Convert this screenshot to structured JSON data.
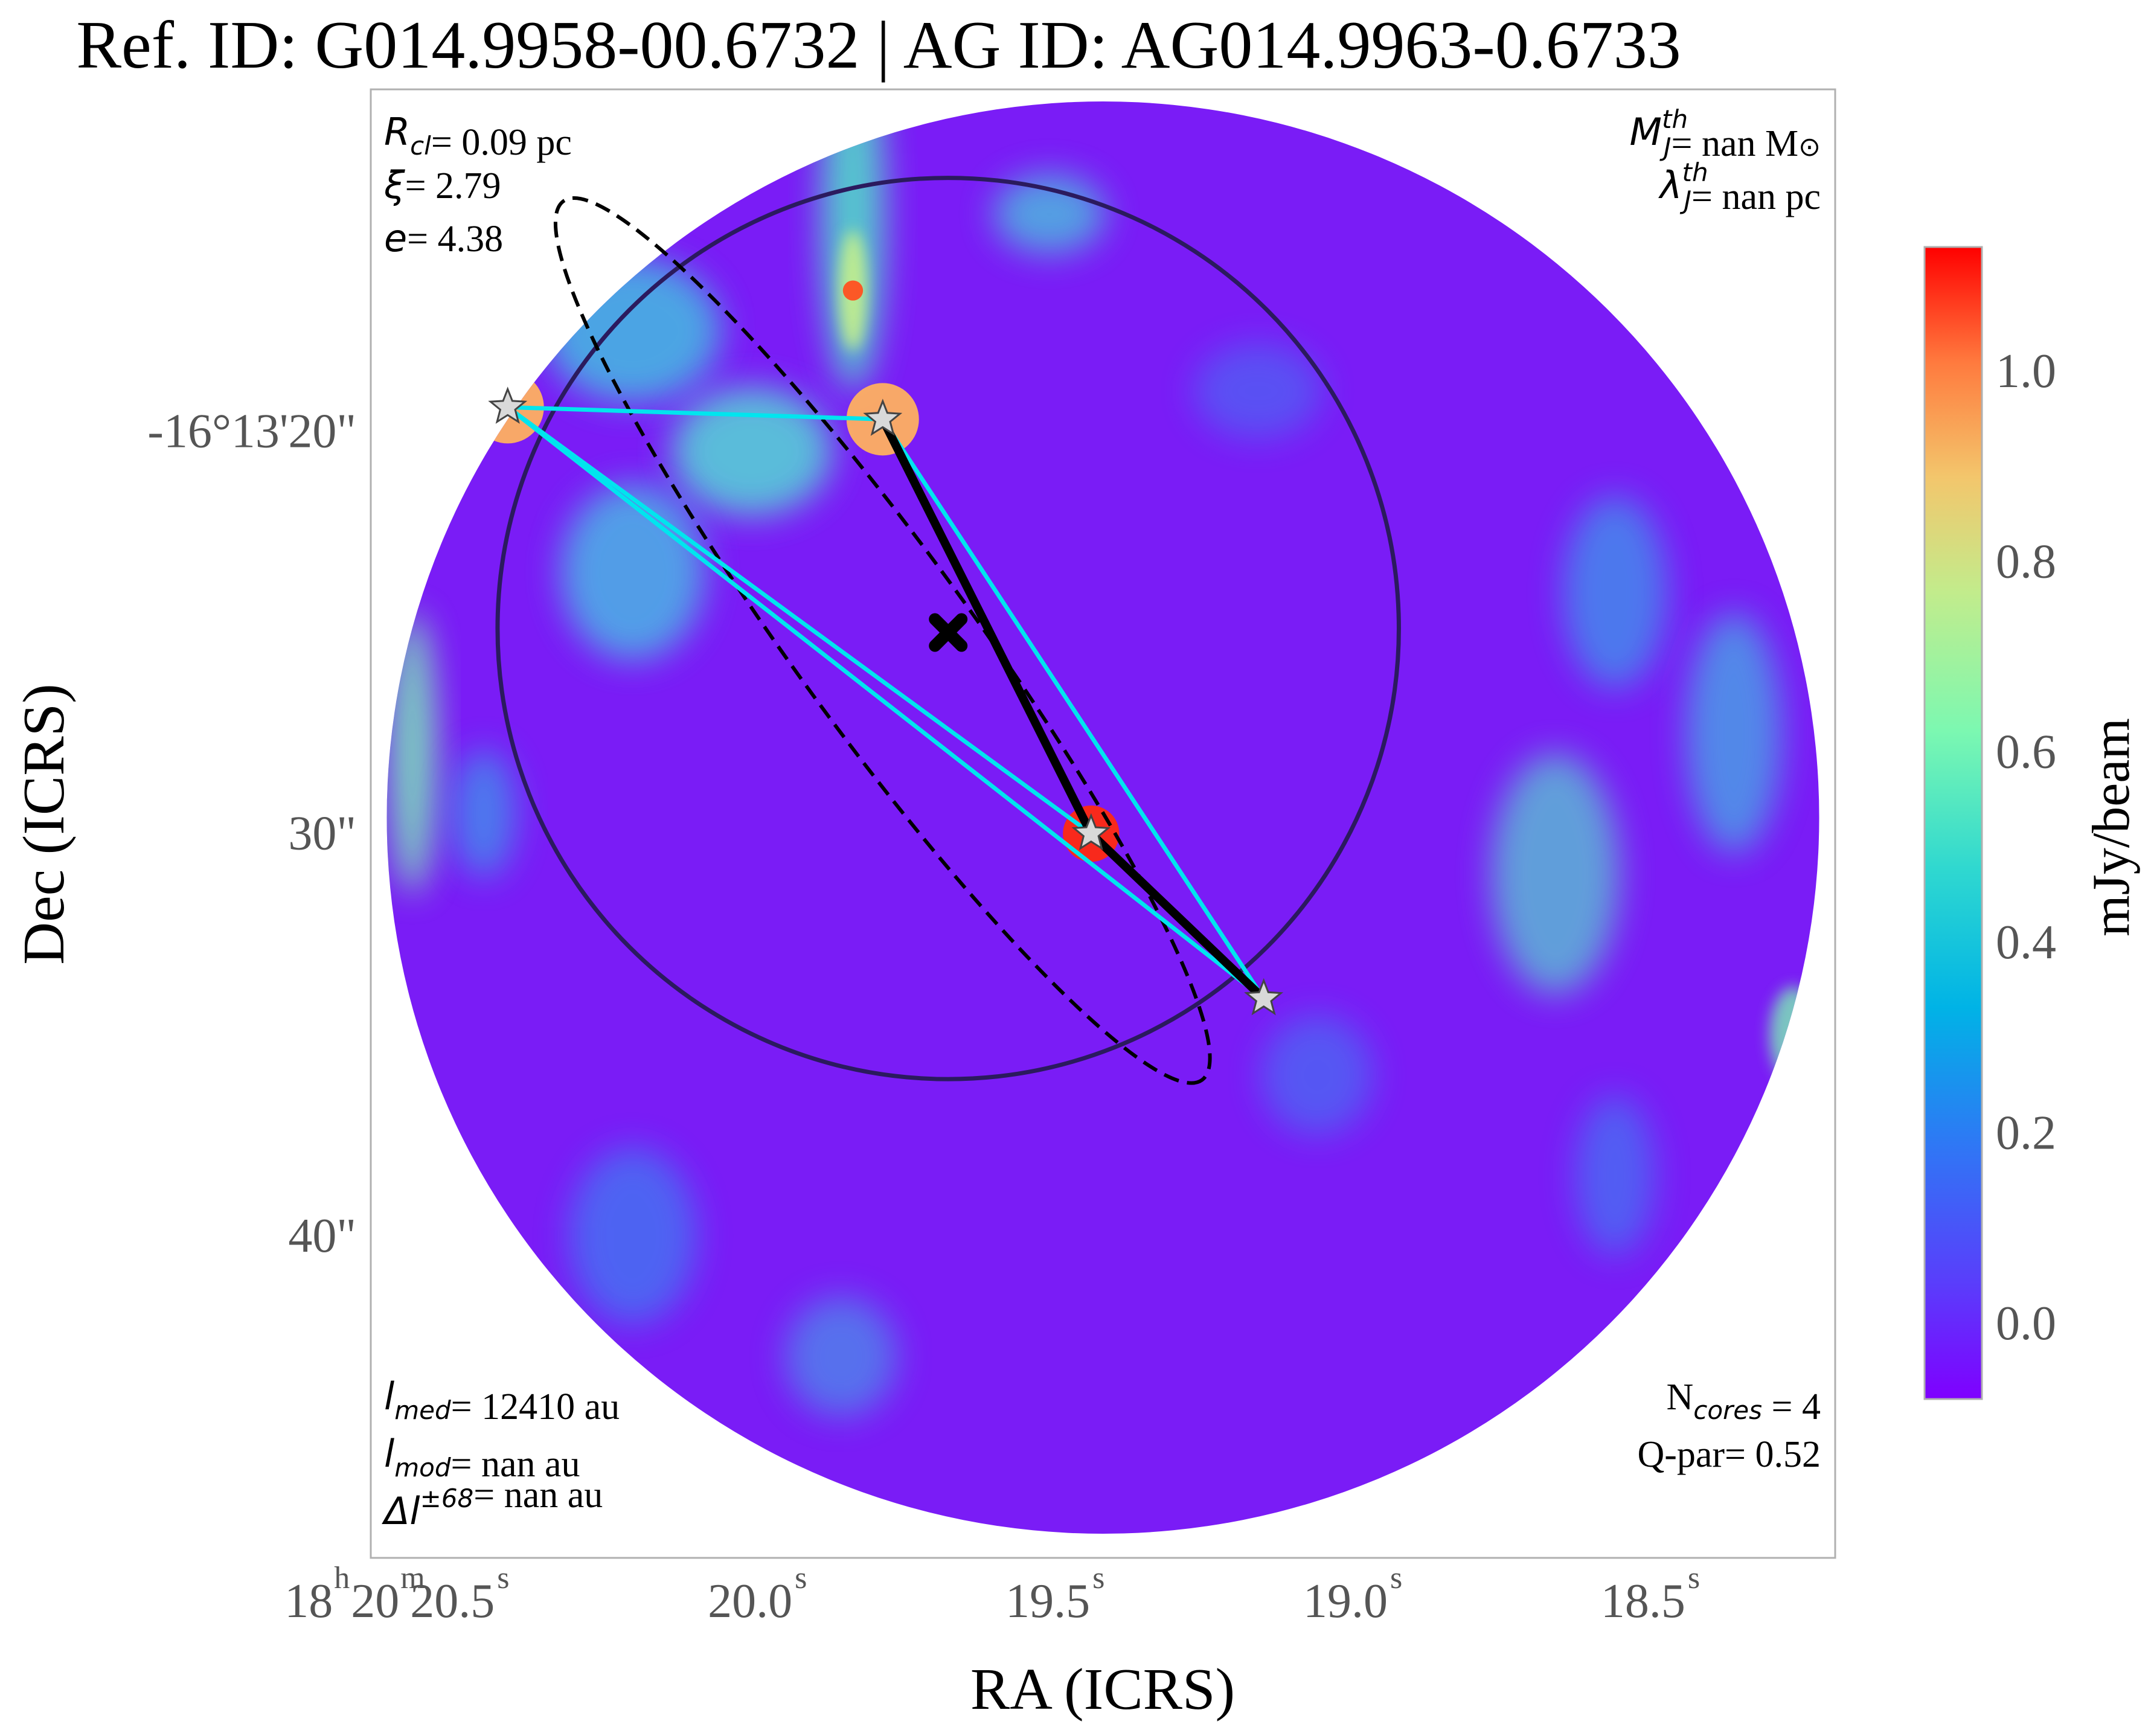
{
  "figure": {
    "title": "Ref. ID: G014.9958-00.6732 | AG ID: AG014.9963-0.6733"
  },
  "annotations": {
    "top_left": [
      {
        "sym": "R",
        "sub": "cl",
        "text": "= 0.09 pc"
      },
      {
        "sym": "ξ",
        "text": "= 2.79"
      },
      {
        "sym": "e",
        "text": "= 4.38"
      }
    ],
    "top_right": [
      {
        "sym": "M",
        "sup": "th",
        "sub": "J",
        "text": "= nan M",
        "tail": "⊙"
      },
      {
        "sym": "λ",
        "sup": "th",
        "sub": "J",
        "text": "= nan pc"
      }
    ],
    "bottom_left": [
      {
        "sym": "l",
        "sub": "med",
        "text": "= 12410 au"
      },
      {
        "sym": "l",
        "sub": "mod",
        "text": "= nan au"
      },
      {
        "sym": "Δl",
        "sup": "±68",
        "text": "= nan au"
      }
    ],
    "bottom_right": [
      {
        "prefix": "N",
        "sub": "cores",
        "text": " = 4"
      },
      {
        "prefix": "Q-par",
        "text": "= 0.52"
      }
    ]
  },
  "chart_data": {
    "type": "heatmap",
    "title": "Ref. ID: G014.9958-00.6732 | AG ID: AG014.9963-0.6733",
    "xlabel": "RA (ICRS)",
    "ylabel": "Dec (ICRS)",
    "colormap": "rainbow",
    "colorbar": {
      "label": "mJy/beam",
      "range": [
        -0.08,
        1.13
      ],
      "ticks": [
        0.0,
        0.2,
        0.4,
        0.6,
        0.8,
        1.0
      ],
      "tick_labels": [
        "0.0",
        "0.2",
        "0.4",
        "0.6",
        "0.8",
        "1.0"
      ]
    },
    "x_axis": {
      "unit": "s of RA (18h20m)",
      "range": [
        20.69,
        18.23
      ],
      "ticks": [
        {
          "value": 20.5,
          "h": "18",
          "m": "20",
          "s": "20.5",
          "label": "18h20m20.5s"
        },
        {
          "value": 20.0,
          "s": "20.0",
          "label": "20.0s"
        },
        {
          "value": 19.5,
          "s": "19.5",
          "label": "19.5s"
        },
        {
          "value": 19.0,
          "s": "19.0",
          "label": "19.0s"
        },
        {
          "value": 18.5,
          "s": "18.5",
          "label": "18.5s"
        }
      ]
    },
    "y_axis": {
      "unit": "arcsec offset from -16°13'00\"",
      "range": [
        -48.0,
        -11.5
      ],
      "ticks": [
        {
          "value": -20,
          "label": "-16°13'20\""
        },
        {
          "value": -30,
          "label": "30\""
        },
        {
          "value": -40,
          "label": "40\""
        }
      ]
    },
    "field_of_view": {
      "shape": "circle",
      "center_ra_s": 19.46,
      "center_dec_arcsec": -29.6,
      "radius_arcsec": 17.8
    },
    "grid": false,
    "clump": {
      "circle": {
        "center_ra_s": 19.72,
        "center_dec_arcsec": -24.9,
        "radius_arcsec": 11.2,
        "color": "#2b1a5e"
      },
      "centroid": {
        "ra_s": 19.72,
        "dec_arcsec": -25.0,
        "marker": "x",
        "color": "#000000"
      },
      "ellipse": {
        "center_ra_s": 19.83,
        "center_dec_arcsec": -25.2,
        "semi_major_arcsec": 13.5,
        "semi_minor_arcsec": 2.2,
        "angle_deg": -36,
        "style": "dashed",
        "color": "#000000"
      }
    },
    "cores": [
      {
        "ra_s": 20.46,
        "dec_arcsec": -19.4
      },
      {
        "ra_s": 19.83,
        "dec_arcsec": -19.7
      },
      {
        "ra_s": 19.48,
        "dec_arcsec": -30.0
      },
      {
        "ra_s": 19.19,
        "dec_arcsec": -34.1
      }
    ],
    "core_marker": {
      "shape": "star",
      "fill": "#d9d9d9",
      "stroke": "#444444"
    },
    "minimum_spanning_tree": {
      "color": "#000000",
      "edges": [
        [
          1,
          2
        ],
        [
          2,
          3
        ]
      ]
    },
    "convex_hull": {
      "color": "#00e5ee",
      "edges": [
        [
          0,
          1
        ],
        [
          1,
          3
        ],
        [
          3,
          0
        ],
        [
          1,
          2
        ],
        [
          2,
          3
        ],
        [
          0,
          2
        ]
      ]
    }
  }
}
